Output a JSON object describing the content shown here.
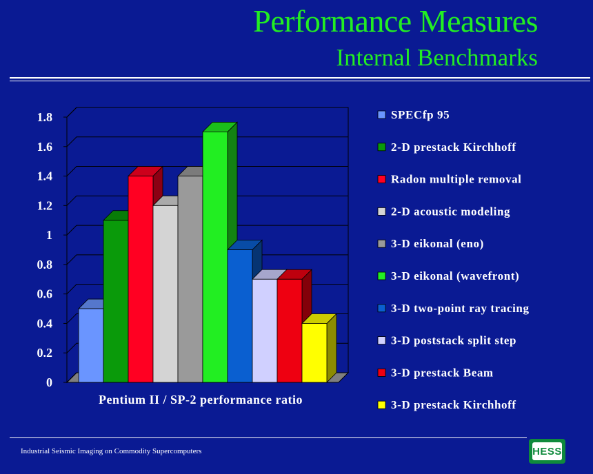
{
  "slide": {
    "title": "Performance Measures",
    "subtitle": "Internal Benchmarks",
    "footer": "Industrial Seismic Imaging on Commodity Supercomputers",
    "logo_text": "HESS",
    "background_color": "#0a1a93",
    "title_color": "#22ee22"
  },
  "chart_data": {
    "type": "bar",
    "title": "",
    "xlabel": "Pentium II / SP-2 performance ratio",
    "ylabel": "",
    "ylim": [
      0,
      1.8
    ],
    "yticks": [
      "0",
      "0.2",
      "0.4",
      "0.6",
      "0.8",
      "1",
      "1.2",
      "1.4",
      "1.6",
      "1.8"
    ],
    "grid": true,
    "legend_position": "right",
    "series": [
      {
        "name": "SPECfp 95",
        "value": 0.5,
        "color": "#6a95ff"
      },
      {
        "name": "2-D prestack Kirchhoff",
        "value": 1.1,
        "color": "#0a9a0a"
      },
      {
        "name": "Radon multiple removal",
        "value": 1.4,
        "color": "#ff0022"
      },
      {
        "name": "2-D acoustic modeling",
        "value": 1.2,
        "color": "#d4d4d4"
      },
      {
        "name": "3-D eikonal (eno)",
        "value": 1.4,
        "color": "#9a9a9a"
      },
      {
        "name": "3-D eikonal (wavefront)",
        "value": 1.7,
        "color": "#22ee22"
      },
      {
        "name": "3-D two-point ray tracing",
        "value": 0.9,
        "color": "#0a5fd0"
      },
      {
        "name": "3-D poststack split step",
        "value": 0.7,
        "color": "#d0d0ff"
      },
      {
        "name": "3-D prestack Beam",
        "value": 0.7,
        "color": "#ee0011"
      },
      {
        "name": "3-D prestack Kirchhoff",
        "value": 0.4,
        "color": "#ffff00"
      }
    ]
  }
}
